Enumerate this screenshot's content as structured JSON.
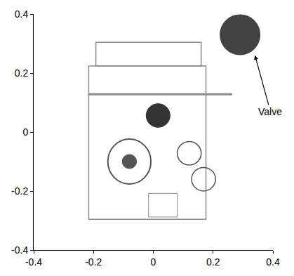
{
  "chart_data": {
    "type": "scatter",
    "x": [
      0.29
    ],
    "y": [
      0.33
    ],
    "color": "#222222",
    "marker": "circle",
    "xlim": [
      -0.4,
      0.4
    ],
    "ylim": [
      -0.4,
      0.4
    ],
    "xticks": [
      -0.4,
      -0.2,
      0,
      0.2,
      0.4
    ],
    "yticks": [
      -0.4,
      -0.2,
      0,
      0.2,
      0.4
    ],
    "grid": false,
    "annotations": [
      {
        "text": "Valve",
        "x": 0.34,
        "y": 0.26
      }
    ]
  }
}
